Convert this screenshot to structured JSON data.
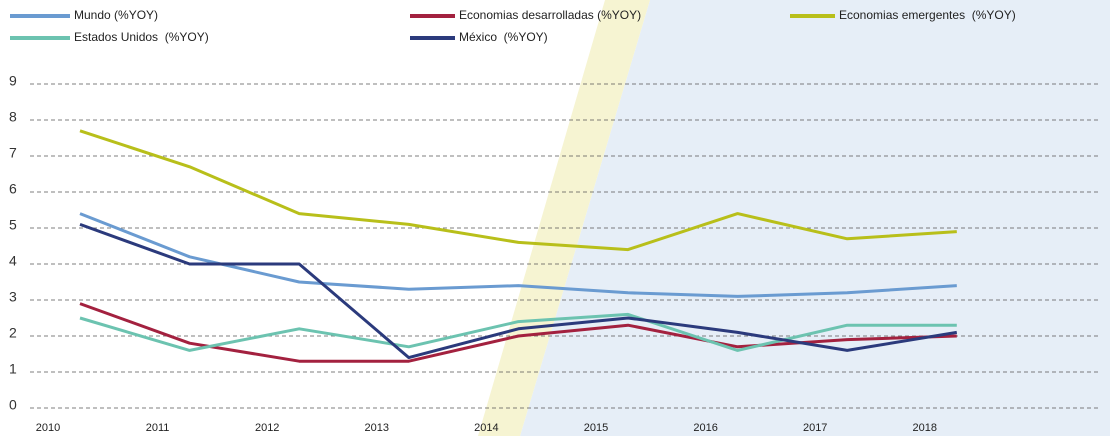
{
  "chart_data": {
    "type": "line",
    "categories": [
      "2010",
      "2011",
      "2012",
      "2013",
      "2014",
      "2015",
      "2016",
      "2017",
      "2018"
    ],
    "series": [
      {
        "name": "Mundo (%YOY)",
        "color": "#6a9bd1",
        "values": [
          5.4,
          4.2,
          3.5,
          3.3,
          3.4,
          3.2,
          3.1,
          3.2,
          3.4
        ]
      },
      {
        "name": "Economias desarrolladas (%YOY)",
        "color": "#a3213f",
        "values": [
          2.9,
          1.8,
          1.3,
          1.3,
          2.0,
          2.3,
          1.7,
          1.9,
          2.0
        ]
      },
      {
        "name": "Economias emergentes  (%YOY)",
        "color": "#b8bf1a",
        "values": [
          7.7,
          6.7,
          5.4,
          5.1,
          4.6,
          4.4,
          5.4,
          4.7,
          4.9
        ]
      },
      {
        "name": "Estados Unidos  (%YOY)",
        "color": "#6cc3b0",
        "values": [
          2.5,
          1.6,
          2.2,
          1.7,
          2.4,
          2.6,
          1.6,
          2.3,
          2.3
        ]
      },
      {
        "name": "México  (%YOY)",
        "color": "#2b3a7c",
        "values": [
          5.1,
          4.0,
          4.0,
          1.4,
          2.2,
          2.5,
          2.1,
          1.6,
          2.1
        ]
      }
    ],
    "ylim": [
      0,
      9
    ],
    "yticks": [
      0,
      1,
      2,
      3,
      4,
      5,
      6,
      7,
      8,
      9
    ],
    "grid": true,
    "legend": "top"
  }
}
